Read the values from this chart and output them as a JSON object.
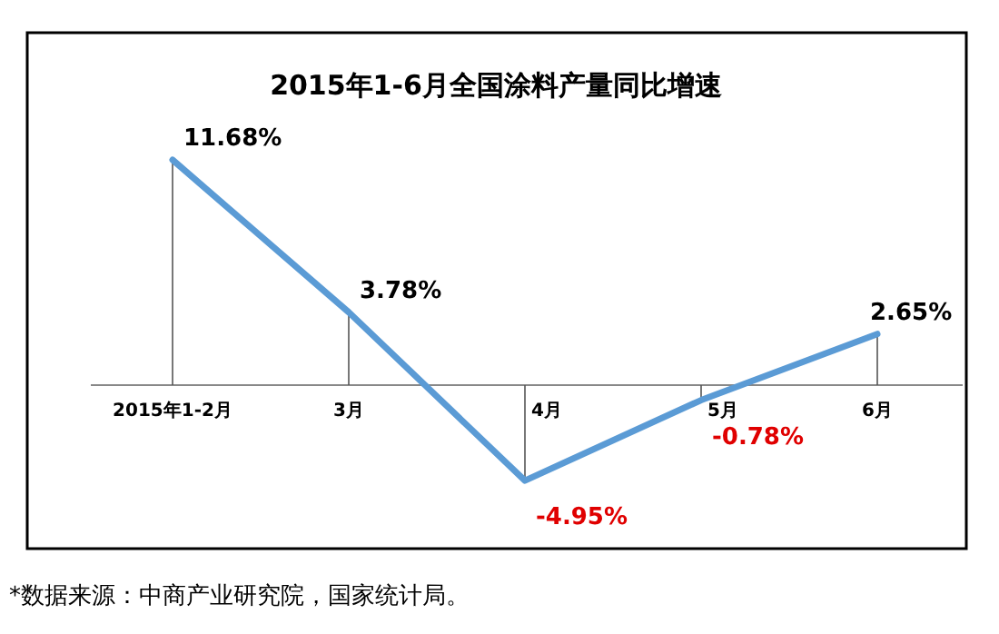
{
  "chart_data": {
    "type": "line",
    "title": "2015年1-6月全国涂料产量同比增速",
    "categories": [
      "2015年1-2月",
      "3月",
      "4月",
      "5月",
      "6月"
    ],
    "values": [
      11.68,
      3.78,
      -4.95,
      -0.78,
      2.65
    ],
    "value_labels": [
      "11.68%",
      "3.78%",
      "-4.95%",
      "-0.78%",
      "2.65%"
    ],
    "color": "#5b9bd5",
    "annotations": [
      "*数据来源：中商产业研究院，国家统计局。"
    ]
  }
}
